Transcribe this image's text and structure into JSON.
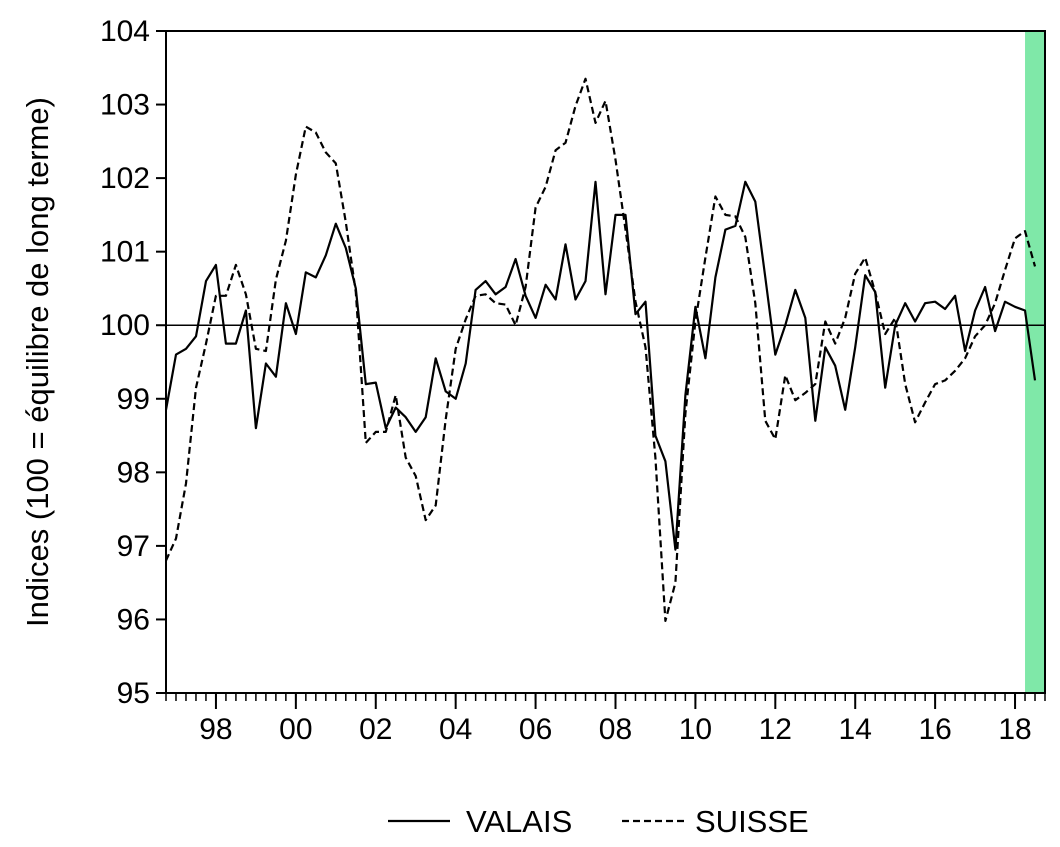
{
  "chart_data": {
    "type": "line",
    "title": "",
    "xlabel": "",
    "ylabel": "Indices (100 = équilibre de long terme)",
    "ylim": [
      95,
      104
    ],
    "xlim": [
      1996.75,
      2018.75
    ],
    "yticks": [
      95,
      96,
      97,
      98,
      99,
      100,
      101,
      102,
      103,
      104
    ],
    "xticks": [
      {
        "value": 1998,
        "label": "98"
      },
      {
        "value": 2000,
        "label": "00"
      },
      {
        "value": 2002,
        "label": "02"
      },
      {
        "value": 2004,
        "label": "04"
      },
      {
        "value": 2006,
        "label": "06"
      },
      {
        "value": 2008,
        "label": "08"
      },
      {
        "value": 2010,
        "label": "10"
      },
      {
        "value": 2012,
        "label": "12"
      },
      {
        "value": 2014,
        "label": "14"
      },
      {
        "value": 2016,
        "label": "16"
      },
      {
        "value": 2018,
        "label": "18"
      }
    ],
    "reference_line": 100,
    "grid": false,
    "legend_position": "bottom",
    "shaded_region": {
      "from": 2018.25,
      "to": 2018.75,
      "color": "#7fe8a8"
    },
    "series": [
      {
        "name": "VALAIS",
        "style": "solid",
        "color": "#000000",
        "points": [
          [
            1996.75,
            98.85
          ],
          [
            1997.0,
            99.6
          ],
          [
            1997.25,
            99.68
          ],
          [
            1997.5,
            99.85
          ],
          [
            1997.75,
            100.6
          ],
          [
            1998.0,
            100.82
          ],
          [
            1998.25,
            99.75
          ],
          [
            1998.5,
            99.75
          ],
          [
            1998.75,
            100.2
          ],
          [
            1999.0,
            98.6
          ],
          [
            1999.25,
            99.48
          ],
          [
            1999.5,
            99.3
          ],
          [
            1999.75,
            100.3
          ],
          [
            2000.0,
            99.88
          ],
          [
            2000.25,
            100.72
          ],
          [
            2000.5,
            100.65
          ],
          [
            2000.75,
            100.95
          ],
          [
            2001.0,
            101.38
          ],
          [
            2001.25,
            101.05
          ],
          [
            2001.5,
            100.5
          ],
          [
            2001.75,
            99.2
          ],
          [
            2002.0,
            99.22
          ],
          [
            2002.25,
            98.6
          ],
          [
            2002.5,
            98.88
          ],
          [
            2002.75,
            98.75
          ],
          [
            2003.0,
            98.55
          ],
          [
            2003.25,
            98.75
          ],
          [
            2003.5,
            99.55
          ],
          [
            2003.75,
            99.1
          ],
          [
            2004.0,
            99.0
          ],
          [
            2004.25,
            99.48
          ],
          [
            2004.5,
            100.48
          ],
          [
            2004.75,
            100.6
          ],
          [
            2005.0,
            100.42
          ],
          [
            2005.25,
            100.52
          ],
          [
            2005.5,
            100.9
          ],
          [
            2005.75,
            100.4
          ],
          [
            2006.0,
            100.1
          ],
          [
            2006.25,
            100.55
          ],
          [
            2006.5,
            100.35
          ],
          [
            2006.75,
            101.1
          ],
          [
            2007.0,
            100.35
          ],
          [
            2007.25,
            100.6
          ],
          [
            2007.5,
            101.95
          ],
          [
            2007.75,
            100.42
          ],
          [
            2008.0,
            101.5
          ],
          [
            2008.25,
            101.5
          ],
          [
            2008.5,
            100.15
          ],
          [
            2008.75,
            100.32
          ],
          [
            2009.0,
            98.5
          ],
          [
            2009.25,
            98.15
          ],
          [
            2009.5,
            96.95
          ],
          [
            2009.75,
            99.05
          ],
          [
            2010.0,
            100.25
          ],
          [
            2010.25,
            99.55
          ],
          [
            2010.5,
            100.65
          ],
          [
            2010.75,
            101.3
          ],
          [
            2011.0,
            101.35
          ],
          [
            2011.25,
            101.95
          ],
          [
            2011.5,
            101.68
          ],
          [
            2011.75,
            100.65
          ],
          [
            2012.0,
            99.6
          ],
          [
            2012.25,
            100.0
          ],
          [
            2012.5,
            100.48
          ],
          [
            2012.75,
            100.1
          ],
          [
            2013.0,
            98.7
          ],
          [
            2013.25,
            99.7
          ],
          [
            2013.5,
            99.45
          ],
          [
            2013.75,
            98.85
          ],
          [
            2014.0,
            99.7
          ],
          [
            2014.25,
            100.68
          ],
          [
            2014.5,
            100.45
          ],
          [
            2014.75,
            99.15
          ],
          [
            2015.0,
            100.0
          ],
          [
            2015.25,
            100.3
          ],
          [
            2015.5,
            100.05
          ],
          [
            2015.75,
            100.3
          ],
          [
            2016.0,
            100.32
          ],
          [
            2016.25,
            100.22
          ],
          [
            2016.5,
            100.4
          ],
          [
            2016.75,
            99.65
          ],
          [
            2017.0,
            100.2
          ],
          [
            2017.25,
            100.52
          ],
          [
            2017.5,
            99.92
          ],
          [
            2017.75,
            100.32
          ],
          [
            2018.0,
            100.25
          ],
          [
            2018.25,
            100.2
          ],
          [
            2018.5,
            99.25
          ]
        ]
      },
      {
        "name": "SUISSE",
        "style": "dashed",
        "color": "#000000",
        "points": [
          [
            1996.75,
            96.8
          ],
          [
            1997.0,
            97.1
          ],
          [
            1997.25,
            97.85
          ],
          [
            1997.5,
            99.15
          ],
          [
            1997.75,
            99.75
          ],
          [
            1998.0,
            100.4
          ],
          [
            1998.25,
            100.4
          ],
          [
            1998.5,
            100.82
          ],
          [
            1998.75,
            100.42
          ],
          [
            1999.0,
            99.68
          ],
          [
            1999.25,
            99.65
          ],
          [
            1999.5,
            100.62
          ],
          [
            1999.75,
            101.15
          ],
          [
            2000.0,
            102.05
          ],
          [
            2000.25,
            102.7
          ],
          [
            2000.5,
            102.62
          ],
          [
            2000.75,
            102.35
          ],
          [
            2001.0,
            102.2
          ],
          [
            2001.25,
            101.4
          ],
          [
            2001.5,
            100.45
          ],
          [
            2001.75,
            98.4
          ],
          [
            2002.0,
            98.55
          ],
          [
            2002.25,
            98.55
          ],
          [
            2002.5,
            99.05
          ],
          [
            2002.75,
            98.2
          ],
          [
            2003.0,
            97.95
          ],
          [
            2003.25,
            97.35
          ],
          [
            2003.5,
            97.55
          ],
          [
            2003.75,
            98.72
          ],
          [
            2004.0,
            99.68
          ],
          [
            2004.25,
            100.08
          ],
          [
            2004.5,
            100.4
          ],
          [
            2004.75,
            100.42
          ],
          [
            2005.0,
            100.3
          ],
          [
            2005.25,
            100.28
          ],
          [
            2005.5,
            100.0
          ],
          [
            2005.75,
            100.52
          ],
          [
            2006.0,
            101.6
          ],
          [
            2006.25,
            101.88
          ],
          [
            2006.5,
            102.38
          ],
          [
            2006.75,
            102.48
          ],
          [
            2007.0,
            102.98
          ],
          [
            2007.25,
            103.35
          ],
          [
            2007.5,
            102.75
          ],
          [
            2007.75,
            103.05
          ],
          [
            2008.0,
            102.25
          ],
          [
            2008.25,
            101.3
          ],
          [
            2008.5,
            100.32
          ],
          [
            2008.75,
            99.7
          ],
          [
            2009.0,
            98.2
          ],
          [
            2009.25,
            95.98
          ],
          [
            2009.5,
            96.5
          ],
          [
            2009.75,
            98.8
          ],
          [
            2010.0,
            100.05
          ],
          [
            2010.25,
            100.92
          ],
          [
            2010.5,
            101.75
          ],
          [
            2010.75,
            101.5
          ],
          [
            2011.0,
            101.48
          ],
          [
            2011.25,
            101.2
          ],
          [
            2011.5,
            100.3
          ],
          [
            2011.75,
            98.7
          ],
          [
            2012.0,
            98.45
          ],
          [
            2012.25,
            99.32
          ],
          [
            2012.5,
            98.98
          ],
          [
            2012.75,
            99.08
          ],
          [
            2013.0,
            99.2
          ],
          [
            2013.25,
            100.05
          ],
          [
            2013.5,
            99.75
          ],
          [
            2013.75,
            100.1
          ],
          [
            2014.0,
            100.7
          ],
          [
            2014.25,
            100.92
          ],
          [
            2014.5,
            100.45
          ],
          [
            2014.75,
            99.88
          ],
          [
            2015.0,
            100.1
          ],
          [
            2015.25,
            99.2
          ],
          [
            2015.5,
            98.68
          ],
          [
            2015.75,
            98.95
          ],
          [
            2016.0,
            99.2
          ],
          [
            2016.25,
            99.25
          ],
          [
            2016.5,
            99.38
          ],
          [
            2016.75,
            99.55
          ],
          [
            2017.0,
            99.85
          ],
          [
            2017.25,
            100.0
          ],
          [
            2017.5,
            100.3
          ],
          [
            2017.75,
            100.75
          ],
          [
            2018.0,
            101.18
          ],
          [
            2018.25,
            101.28
          ],
          [
            2018.5,
            100.8
          ]
        ]
      }
    ]
  }
}
